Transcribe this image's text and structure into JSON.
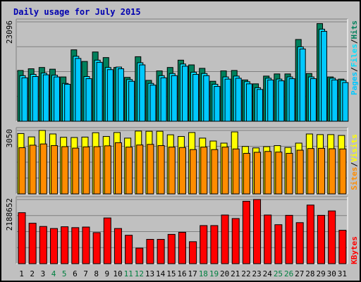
{
  "title": "Daily usage for July 2015",
  "colors": {
    "hits": "#00805c",
    "files": "#00e0ff",
    "pages": "#00c8ff",
    "visits": "#ffff00",
    "sites": "#ff8c00",
    "kbytes": "#ff0000",
    "weekend_day": "#008040",
    "weekday": "#000000"
  },
  "chart_data": [
    {
      "type": "bar",
      "panel": "hits-files-pages",
      "categories": [
        "1",
        "2",
        "3",
        "4",
        "5",
        "6",
        "7",
        "8",
        "9",
        "10",
        "11",
        "12",
        "13",
        "14",
        "15",
        "16",
        "17",
        "18",
        "19",
        "20",
        "21",
        "22",
        "23",
        "24",
        "25",
        "26",
        "27",
        "28",
        "29",
        "30",
        "31"
      ],
      "weekend_days": [
        "4",
        "5",
        "11",
        "12",
        "18",
        "19",
        "25",
        "26"
      ],
      "ymax_label": "23096",
      "ymax": 23096,
      "legend": [
        "Pages",
        "/",
        "Files",
        "/",
        "Hits"
      ],
      "series": [
        {
          "name": "Hits",
          "values": [
            11800,
            12200,
            12500,
            12100,
            10300,
            16600,
            13900,
            16100,
            14800,
            12500,
            10200,
            15000,
            9500,
            11700,
            12500,
            14200,
            13100,
            12300,
            9300,
            11700,
            11800,
            9600,
            8700,
            10500,
            11000,
            11000,
            19000,
            11100,
            22700,
            10300,
            9800
          ]
        },
        {
          "name": "Files",
          "values": [
            10600,
            10900,
            11200,
            10700,
            8800,
            15100,
            10400,
            14200,
            12500,
            12600,
            9700,
            13600,
            8800,
            10600,
            11100,
            13300,
            11400,
            11100,
            8600,
            10300,
            10500,
            9200,
            7800,
            10000,
            9800,
            10300,
            17300,
            10300,
            21400,
            10000,
            9500
          ]
        },
        {
          "name": "Pages",
          "values": [
            10100,
            10400,
            10800,
            10300,
            8600,
            14600,
            9900,
            13700,
            12000,
            12200,
            9300,
            13100,
            8400,
            10100,
            10600,
            12800,
            10900,
            10600,
            8100,
            9800,
            10000,
            8700,
            7400,
            9600,
            9400,
            9900,
            16800,
            9900,
            20900,
            9600,
            9000
          ]
        }
      ]
    },
    {
      "type": "bar",
      "panel": "visits-sites",
      "categories": [
        "1",
        "2",
        "3",
        "4",
        "5",
        "6",
        "7",
        "8",
        "9",
        "10",
        "11",
        "12",
        "13",
        "14",
        "15",
        "16",
        "17",
        "18",
        "19",
        "20",
        "21",
        "22",
        "23",
        "24",
        "25",
        "26",
        "27",
        "28",
        "29",
        "30",
        "31"
      ],
      "ymax_label": "3050",
      "ymax": 3050,
      "legend": [
        "Sites",
        "/",
        "Visits"
      ],
      "series": [
        {
          "name": "Visits",
          "values": [
            2900,
            2740,
            3050,
            2880,
            2720,
            2710,
            2730,
            2940,
            2760,
            2950,
            2680,
            3020,
            3010,
            3010,
            2840,
            2760,
            2950,
            2680,
            2540,
            2440,
            2980,
            2280,
            2210,
            2270,
            2320,
            2230,
            2440,
            2880,
            2850,
            2850,
            2810
          ]
        },
        {
          "name": "Sites",
          "values": [
            2220,
            2340,
            2400,
            2320,
            2270,
            2200,
            2260,
            2270,
            2310,
            2460,
            2250,
            2350,
            2380,
            2320,
            2250,
            2230,
            2130,
            2250,
            2130,
            2250,
            2160,
            1950,
            2000,
            2040,
            2010,
            1950,
            2100,
            2180,
            2190,
            2170,
            2160
          ]
        }
      ]
    },
    {
      "type": "bar",
      "panel": "kbytes",
      "categories": [
        "1",
        "2",
        "3",
        "4",
        "5",
        "6",
        "7",
        "8",
        "9",
        "10",
        "11",
        "12",
        "13",
        "14",
        "15",
        "16",
        "17",
        "18",
        "19",
        "20",
        "21",
        "22",
        "23",
        "24",
        "25",
        "26",
        "27",
        "28",
        "29",
        "30",
        "31"
      ],
      "ymax_label": "2188652",
      "ymax": 2188652,
      "legend": [
        "KBytes"
      ],
      "series": [
        {
          "name": "KBytes",
          "values": [
            1740000,
            1380000,
            1270000,
            1200000,
            1260000,
            1230000,
            1250000,
            1060000,
            1560000,
            1200000,
            970000,
            530000,
            830000,
            830000,
            1000000,
            1070000,
            750000,
            1300000,
            1300000,
            1660000,
            1540000,
            2130000,
            2190000,
            1660000,
            1330000,
            1650000,
            1400000,
            2000000,
            1650000,
            1800000,
            1140000
          ]
        }
      ]
    }
  ]
}
